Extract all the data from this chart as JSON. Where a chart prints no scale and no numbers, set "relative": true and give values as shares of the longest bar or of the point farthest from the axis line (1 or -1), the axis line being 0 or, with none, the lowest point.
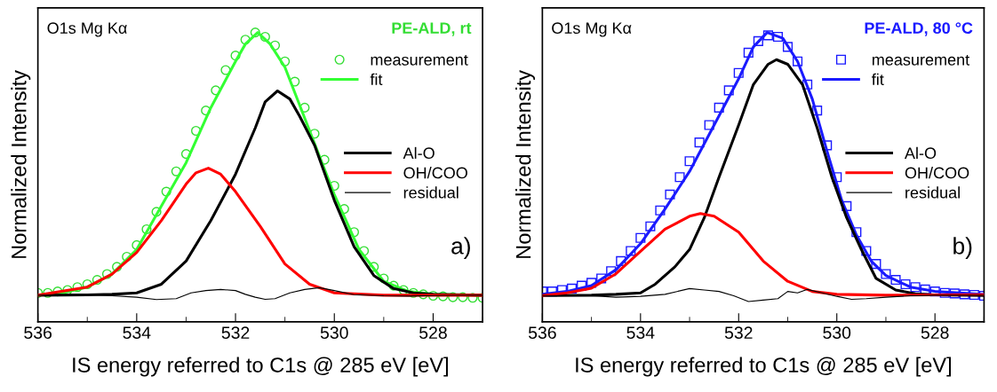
{
  "chart_data": [
    {
      "type": "line",
      "relative": true,
      "tick_labels": "x",
      "legend": "right",
      "xlabel": "IS energy referred to C1s @ 285 eV [eV]",
      "ylabel": "Normalized Intensity",
      "xlim": [
        536,
        527
      ],
      "xticks": [
        536,
        {
          "value": 535,
          "label": null
        },
        534,
        {
          "value": 533,
          "label": null
        },
        532,
        {
          "value": 531,
          "label": null
        },
        530,
        {
          "value": 529,
          "label": null
        },
        528,
        {
          "value": 527,
          "label": null
        }
      ],
      "annotations": [
        "O1s Mg Kα",
        "PE-ALD, rt",
        "a)"
      ],
      "series": [
        {
          "name": "measurement",
          "type": "scatter",
          "marker": "circle",
          "color": "#33dd33",
          "x": [
            536.0,
            535.8,
            535.6,
            535.4,
            535.2,
            535.0,
            534.8,
            534.6,
            534.4,
            534.2,
            534.0,
            533.8,
            533.6,
            533.4,
            533.2,
            533.0,
            532.8,
            532.6,
            532.4,
            532.2,
            532.0,
            531.8,
            531.6,
            531.4,
            531.2,
            531.0,
            530.8,
            530.6,
            530.4,
            530.2,
            530.0,
            529.8,
            529.6,
            529.4,
            529.2,
            529.0,
            528.8,
            528.6,
            528.4,
            528.2,
            528.0,
            527.8,
            527.6,
            527.4,
            527.2,
            527.0
          ],
          "values": [
            0.1,
            0.1,
            0.105,
            0.11,
            0.12,
            0.13,
            0.145,
            0.165,
            0.19,
            0.225,
            0.265,
            0.32,
            0.38,
            0.45,
            0.52,
            0.58,
            0.66,
            0.73,
            0.8,
            0.87,
            0.92,
            0.975,
            1.0,
            0.985,
            0.955,
            0.9,
            0.83,
            0.74,
            0.65,
            0.56,
            0.47,
            0.39,
            0.31,
            0.245,
            0.19,
            0.15,
            0.125,
            0.11,
            0.1,
            0.095,
            0.09,
            0.088,
            0.085,
            0.085,
            0.083,
            0.083
          ]
        },
        {
          "name": "fit",
          "type": "line",
          "color": "#33ff33",
          "x": [
            536,
            535.5,
            535,
            534.5,
            534,
            533.5,
            533,
            532.5,
            532,
            531.8,
            531.55,
            531.3,
            531,
            530.5,
            530,
            529.5,
            529,
            528.5,
            528,
            527
          ],
          "values": [
            0.092,
            0.1,
            0.12,
            0.165,
            0.25,
            0.4,
            0.55,
            0.74,
            0.9,
            0.96,
            1.0,
            0.96,
            0.88,
            0.66,
            0.44,
            0.25,
            0.14,
            0.105,
            0.095,
            0.092
          ]
        },
        {
          "name": "Al-O",
          "type": "line",
          "color": "#000000",
          "x": [
            536,
            535,
            534.5,
            534,
            533.5,
            533,
            532.5,
            532,
            531.6,
            531.4,
            531.15,
            530.9,
            530.7,
            530.4,
            530,
            529.6,
            529.2,
            528.8,
            528.4,
            528,
            527
          ],
          "values": [
            0.092,
            0.093,
            0.095,
            0.1,
            0.13,
            0.21,
            0.35,
            0.51,
            0.67,
            0.76,
            0.798,
            0.77,
            0.71,
            0.61,
            0.42,
            0.26,
            0.16,
            0.115,
            0.1,
            0.095,
            0.092
          ]
        },
        {
          "name": "OH/COO",
          "type": "line",
          "color": "#ff0000",
          "x": [
            536,
            535,
            534.5,
            534,
            533.5,
            533,
            532.8,
            532.55,
            532.3,
            532,
            531.5,
            531,
            530.5,
            530,
            529,
            527
          ],
          "values": [
            0.092,
            0.12,
            0.165,
            0.24,
            0.35,
            0.476,
            0.515,
            0.531,
            0.51,
            0.45,
            0.33,
            0.2,
            0.13,
            0.1,
            0.092,
            0.092
          ]
        },
        {
          "name": "residual",
          "type": "line",
          "color": "#000000",
          "x": [
            536,
            535,
            534.5,
            534,
            533.6,
            533.2,
            532.9,
            532.6,
            532.3,
            532,
            531.8,
            531.6,
            531.4,
            531.2,
            530.9,
            530.6,
            530.3,
            530,
            529.6,
            529,
            528.5,
            528,
            527
          ],
          "values": [
            0.092,
            0.094,
            0.09,
            0.085,
            0.077,
            0.08,
            0.1,
            0.108,
            0.112,
            0.108,
            0.095,
            0.085,
            0.078,
            0.08,
            0.1,
            0.112,
            0.118,
            0.108,
            0.094,
            0.09,
            0.089,
            0.091,
            0.092
          ]
        }
      ]
    },
    {
      "type": "line",
      "relative": true,
      "tick_labels": "x",
      "legend": "right",
      "xlabel": "IS energy referred to C1s @ 285 eV [eV]",
      "ylabel": "Normalized Intensity",
      "xlim": [
        536,
        527
      ],
      "xticks": [
        536,
        {
          "value": 535,
          "label": null
        },
        534,
        {
          "value": 533,
          "label": null
        },
        532,
        {
          "value": 531,
          "label": null
        },
        530,
        {
          "value": 529,
          "label": null
        },
        528,
        {
          "value": 527,
          "label": null
        }
      ],
      "annotations": [
        "O1s Mg Kα",
        "PE-ALD, 80 °C",
        "b)"
      ],
      "series": [
        {
          "name": "measurement",
          "type": "scatter",
          "marker": "square",
          "color": "#1a1aff",
          "x": [
            536.0,
            535.8,
            535.6,
            535.4,
            535.2,
            535.0,
            534.8,
            534.6,
            534.4,
            534.2,
            534.0,
            533.8,
            533.6,
            533.4,
            533.2,
            533.0,
            532.8,
            532.6,
            532.4,
            532.2,
            532.0,
            531.8,
            531.6,
            531.4,
            531.2,
            531.0,
            530.8,
            530.6,
            530.4,
            530.2,
            530.0,
            529.8,
            529.6,
            529.4,
            529.2,
            529.0,
            528.8,
            528.6,
            528.4,
            528.2,
            528.0,
            527.8,
            527.6,
            527.4,
            527.2,
            527.0
          ],
          "values": [
            0.105,
            0.105,
            0.11,
            0.115,
            0.125,
            0.135,
            0.15,
            0.175,
            0.21,
            0.245,
            0.29,
            0.33,
            0.385,
            0.44,
            0.5,
            0.555,
            0.62,
            0.68,
            0.74,
            0.8,
            0.86,
            0.93,
            0.97,
            0.99,
            0.985,
            0.95,
            0.9,
            0.82,
            0.73,
            0.61,
            0.5,
            0.4,
            0.31,
            0.245,
            0.2,
            0.165,
            0.145,
            0.13,
            0.12,
            0.112,
            0.105,
            0.1,
            0.098,
            0.095,
            0.093,
            0.09
          ]
        },
        {
          "name": "fit",
          "type": "line",
          "color": "#1a1aff",
          "x": [
            536,
            535.5,
            535,
            534.5,
            534,
            533.5,
            533,
            532.5,
            532,
            531.7,
            531.42,
            531.1,
            530.8,
            530.5,
            530.2,
            529.9,
            529.6,
            529.3,
            529,
            528.5,
            528,
            527.5,
            527
          ],
          "values": [
            0.095,
            0.105,
            0.125,
            0.18,
            0.27,
            0.39,
            0.52,
            0.68,
            0.84,
            0.95,
            1.0,
            0.98,
            0.9,
            0.77,
            0.59,
            0.42,
            0.3,
            0.21,
            0.16,
            0.12,
            0.105,
            0.1,
            0.095
          ]
        },
        {
          "name": "Al-O",
          "type": "line",
          "color": "#000000",
          "x": [
            536,
            535,
            534.5,
            534,
            533.7,
            533.3,
            533,
            532.7,
            532.4,
            532,
            531.7,
            531.4,
            531.23,
            531,
            530.7,
            530.4,
            530.1,
            529.8,
            529.5,
            529.2,
            528.8,
            528.4,
            528,
            527
          ],
          "values": [
            0.091,
            0.092,
            0.095,
            0.1,
            0.13,
            0.19,
            0.25,
            0.36,
            0.5,
            0.68,
            0.82,
            0.89,
            0.906,
            0.89,
            0.82,
            0.67,
            0.5,
            0.36,
            0.25,
            0.15,
            0.11,
            0.097,
            0.093,
            0.091
          ]
        },
        {
          "name": "OH/COO",
          "type": "line",
          "color": "#ff0000",
          "x": [
            536,
            535.5,
            535,
            534.5,
            534,
            533.5,
            533,
            532.78,
            532.5,
            532,
            531.5,
            531,
            530.5,
            530,
            529,
            528,
            527
          ],
          "values": [
            0.091,
            0.1,
            0.116,
            0.166,
            0.244,
            0.32,
            0.365,
            0.374,
            0.365,
            0.31,
            0.21,
            0.14,
            0.105,
            0.095,
            0.092,
            0.093,
            0.094
          ]
        },
        {
          "name": "residual",
          "type": "line",
          "color": "#000000",
          "x": [
            536,
            535,
            534.5,
            534,
            533.5,
            533,
            532.7,
            532.4,
            532.1,
            531.8,
            531.5,
            531.2,
            531,
            530.8,
            530.6,
            530.3,
            530,
            529.7,
            529.4,
            529,
            528.5,
            528,
            527
          ],
          "values": [
            0.091,
            0.09,
            0.085,
            0.088,
            0.095,
            0.115,
            0.11,
            0.105,
            0.09,
            0.07,
            0.075,
            0.08,
            0.105,
            0.1,
            0.112,
            0.1,
            0.088,
            0.078,
            0.08,
            0.085,
            0.09,
            0.092,
            0.092
          ]
        }
      ]
    }
  ]
}
